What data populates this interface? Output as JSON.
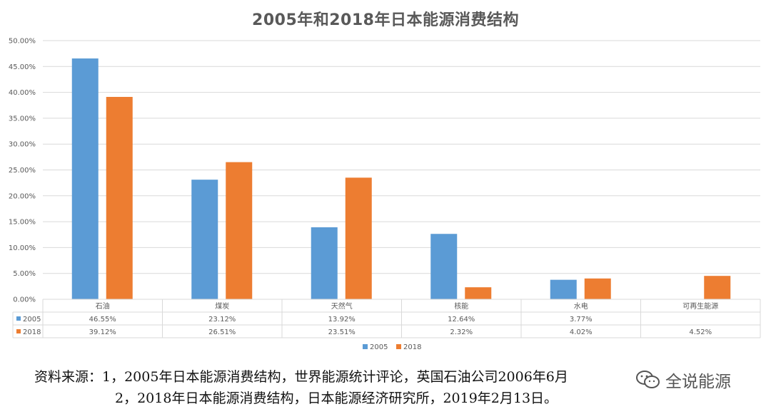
{
  "chart_data": {
    "type": "bar",
    "title": "2005年和2018年日本能源消费结构",
    "categories": [
      "石油",
      "煤炭",
      "天然气",
      "核能",
      "水电",
      "可再生能源"
    ],
    "series": [
      {
        "name": "2005",
        "color": "#5B9BD5",
        "values": [
          46.55,
          23.12,
          13.92,
          12.64,
          3.77,
          null
        ],
        "labels": [
          "46.55%",
          "23.12%",
          "13.92%",
          "12.64%",
          "3.77%",
          ""
        ]
      },
      {
        "name": "2018",
        "color": "#ED7D31",
        "values": [
          39.12,
          26.51,
          23.51,
          2.32,
          4.02,
          4.52
        ],
        "labels": [
          "39.12%",
          "26.51%",
          "23.51%",
          "2.32%",
          "4.02%",
          "4.52%"
        ]
      }
    ],
    "ylim": [
      0,
      50
    ],
    "yticks": [
      "0.00%",
      "5.00%",
      "10.00%",
      "15.00%",
      "20.00%",
      "25.00%",
      "30.00%",
      "35.00%",
      "40.00%",
      "45.00%",
      "50.00%"
    ],
    "grid": true,
    "legend": "bottom",
    "data_table": true
  },
  "source": {
    "line1": "资料来源：1，2005年日本能源消费结构，世界能源统计评论，英国石油公司2006年6月",
    "line2": "2，2018年日本能源消费结构，日本能源经济研究所，2019年2月13日。"
  },
  "watermark": {
    "text": "全说能源",
    "icon": "wechat-icon"
  }
}
